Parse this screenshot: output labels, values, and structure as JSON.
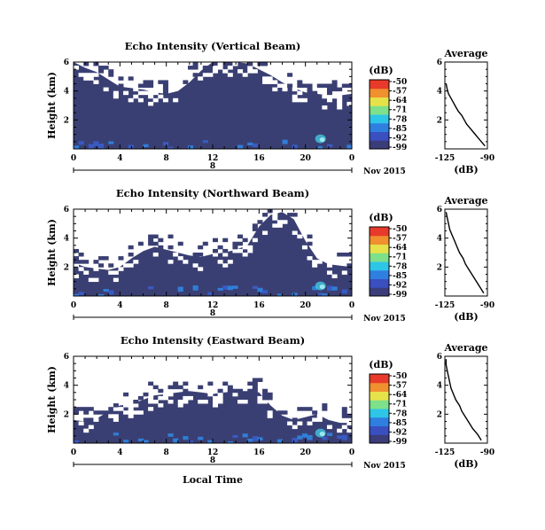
{
  "chart_data": [
    {
      "type": "heatmap",
      "title": "Echo Intensity (Vertical Beam)",
      "ylabel": "Height (km)",
      "xlim": [
        0,
        24
      ],
      "ylim": [
        0,
        6
      ],
      "x_ticks": [
        "0",
        "4",
        "8",
        "12",
        "16",
        "20",
        "0"
      ],
      "y_ticks": [
        "2",
        "4",
        "6"
      ],
      "day_label": "8",
      "date_label": "Nov 2015",
      "colorbar": {
        "unit": "(dB)",
        "ticks": [
          "-50",
          "-57",
          "-64",
          "-71",
          "-78",
          "-85",
          "-92",
          "-99"
        ]
      },
      "echo_top_km": [
        6.0,
        5.6,
        5.3,
        4.8,
        4.3,
        4.2,
        4.1,
        3.9,
        3.8,
        4.0,
        4.6,
        5.4,
        6.0,
        6.0,
        6.0,
        5.9,
        5.5,
        5.1,
        4.6,
        4.2,
        3.9,
        3.8,
        3.7,
        3.7,
        3.8
      ],
      "profile": {
        "title": "Average",
        "xlabel": "(dB)",
        "xlim": [
          -125,
          -90
        ],
        "x_ticks": [
          "-125",
          "-90"
        ],
        "y_ticks": [
          "2",
          "4",
          "6"
        ],
        "height_km": [
          0.2,
          0.5,
          0.8,
          1.1,
          1.4,
          1.7,
          2.0,
          2.3,
          2.6,
          2.9,
          3.2,
          3.5,
          3.8,
          4.1,
          4.5
        ],
        "db": [
          -92,
          -95,
          -98,
          -101,
          -104,
          -107,
          -109,
          -111,
          -114,
          -116,
          -118,
          -120,
          -122,
          -123,
          -124
        ]
      }
    },
    {
      "type": "heatmap",
      "title": "Echo Intensity (Northward Beam)",
      "ylabel": "Height (km)",
      "xlim": [
        0,
        24
      ],
      "ylim": [
        0,
        6
      ],
      "x_ticks": [
        "0",
        "4",
        "8",
        "12",
        "16",
        "20",
        "0"
      ],
      "y_ticks": [
        "2",
        "4",
        "6"
      ],
      "day_label": "8",
      "date_label": "Nov 2015",
      "colorbar": {
        "unit": "(dB)",
        "ticks": [
          "-50",
          "-57",
          "-64",
          "-71",
          "-78",
          "-85",
          "-92",
          "-99"
        ]
      },
      "echo_top_km": [
        2.3,
        2.0,
        1.9,
        1.8,
        2.0,
        2.6,
        3.1,
        3.4,
        3.2,
        3.0,
        2.8,
        2.7,
        2.9,
        3.0,
        3.2,
        3.5,
        4.8,
        5.6,
        5.8,
        5.3,
        3.8,
        2.6,
        2.2,
        2.1,
        2.0
      ],
      "profile": {
        "title": "Average",
        "xlabel": "(dB)",
        "xlim": [
          -125,
          -90
        ],
        "x_ticks": [
          "-125",
          "-90"
        ],
        "y_ticks": [
          "2",
          "4",
          "6"
        ],
        "height_km": [
          0.2,
          0.6,
          1.0,
          1.4,
          1.8,
          2.2,
          2.6,
          3.0,
          3.4,
          3.8,
          4.2,
          4.6,
          5.0,
          5.4,
          5.8
        ],
        "db": [
          -93,
          -96,
          -99,
          -102,
          -105,
          -108,
          -110,
          -113,
          -115,
          -117,
          -119,
          -121,
          -122,
          -123,
          -124
        ]
      }
    },
    {
      "type": "heatmap",
      "title": "Echo Intensity (Eastward Beam)",
      "ylabel": "Height (km)",
      "xlabel": "Local Time",
      "xlim": [
        0,
        24
      ],
      "ylim": [
        0,
        6
      ],
      "x_ticks": [
        "0",
        "4",
        "8",
        "12",
        "16",
        "20",
        "0"
      ],
      "y_ticks": [
        "2",
        "4",
        "6"
      ],
      "day_label": "8",
      "date_label": "Nov 2015",
      "colorbar": {
        "unit": "(dB)",
        "ticks": [
          "-50",
          "-57",
          "-64",
          "-71",
          "-78",
          "-85",
          "-92",
          "-99"
        ]
      },
      "echo_top_km": [
        1.6,
        1.5,
        1.7,
        2.2,
        2.6,
        2.7,
        3.0,
        3.3,
        3.4,
        3.5,
        3.6,
        3.5,
        3.4,
        3.5,
        3.6,
        3.6,
        3.5,
        2.6,
        1.9,
        1.6,
        1.8,
        2.0,
        1.6,
        1.4,
        1.4
      ],
      "profile": {
        "title": "Average",
        "xlabel": "(dB)",
        "xlim": [
          -125,
          -90
        ],
        "x_ticks": [
          "-125",
          "-90"
        ],
        "y_ticks": [
          "2",
          "4",
          "6"
        ],
        "height_km": [
          0.2,
          0.6,
          1.0,
          1.4,
          1.8,
          2.2,
          2.6,
          3.0,
          3.4,
          3.8,
          4.2,
          4.6,
          5.0,
          5.4,
          5.8
        ],
        "db": [
          -95,
          -98,
          -102,
          -105,
          -108,
          -111,
          -113,
          -116,
          -118,
          -120,
          -121,
          -122,
          -123,
          -124,
          -124
        ]
      }
    }
  ],
  "colors": {
    "background": "#3a3f73",
    "colorbar": [
      "#3b3d7a",
      "#3a4fc0",
      "#2f7fe0",
      "#2ec6e6",
      "#7de08a",
      "#e6e24a",
      "#f0902e",
      "#e83a2a"
    ],
    "highlight": [
      "#3a5fd0",
      "#2f8ae8",
      "#46d0e6"
    ]
  }
}
